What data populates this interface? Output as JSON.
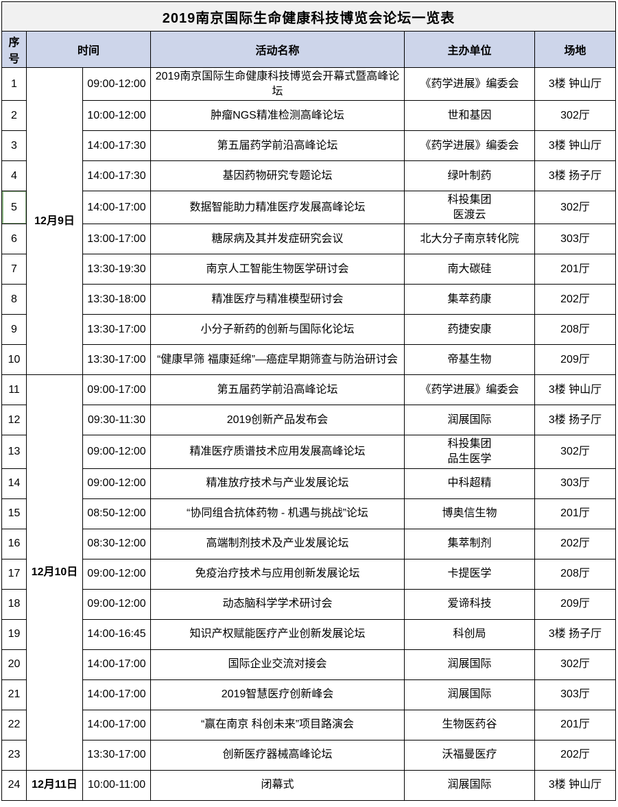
{
  "title": "2019南京国际生命健康科技博览会论坛一览表",
  "columns": {
    "no": "序号",
    "time": "时间",
    "activity": "活动名称",
    "organizer": "主办单位",
    "venue": "场地"
  },
  "colors": {
    "title_bg": "#f1f1f1",
    "header_bg": "#cdd5ea",
    "selection_green": "#94bd8c",
    "grid_border": "#000000"
  },
  "rows": [
    {
      "no": "1",
      "date": "12月9日",
      "date_span": 10,
      "time": "09:00-12:00",
      "activity": "2019南京国际生命健康科技博览会开幕式暨高峰论坛",
      "organizer": "《药学进展》编委会",
      "venue": "3楼 钟山厅"
    },
    {
      "no": "2",
      "time": "10:00-12:00",
      "activity": "肿瘤NGS精准检测高峰论坛",
      "organizer": "世和基因",
      "venue": "302厅"
    },
    {
      "no": "3",
      "time": "14:00-17:30",
      "activity": "第五届药学前沿高峰论坛",
      "organizer": "《药学进展》编委会",
      "venue": "3楼 钟山厅"
    },
    {
      "no": "4",
      "time": "14:00-17:30",
      "activity": "基因药物研究专题论坛",
      "organizer": "绿叶制药",
      "venue": "3楼 扬子厅"
    },
    {
      "no": "5",
      "selected": true,
      "time": "14:00-17:00",
      "activity": "数据智能助力精准医疗发展高峰论坛",
      "organizer": "科投集团\n医渡云",
      "venue": "302厅"
    },
    {
      "no": "6",
      "time": "13:00-17:00",
      "activity": "糖尿病及其并发症研究会议",
      "organizer": "北大分子南京转化院",
      "venue": "303厅"
    },
    {
      "no": "7",
      "time": "13:30-19:30",
      "activity": "南京人工智能生物医学研讨会",
      "organizer": "南大碳硅",
      "venue": "201厅"
    },
    {
      "no": "8",
      "time": "13:30-18:00",
      "activity": "精准医疗与精准模型研讨会",
      "organizer": "集萃药康",
      "venue": "202厅"
    },
    {
      "no": "9",
      "time": "13:30-17:00",
      "activity": "小分子新药的创新与国际化论坛",
      "organizer": "药捷安康",
      "venue": "208厅"
    },
    {
      "no": "10",
      "time": "13:30-17:00",
      "activity": "“健康早筛 福康延绵”—癌症早期筛查与防治研讨会",
      "organizer": "帝基生物",
      "venue": "209厅"
    },
    {
      "no": "11",
      "date": "12月10日",
      "date_span": 13,
      "time": "09:00-17:00",
      "activity": "第五届药学前沿高峰论坛",
      "organizer": "《药学进展》编委会",
      "venue": "3楼 钟山厅"
    },
    {
      "no": "12",
      "time": "09:30-11:30",
      "activity": "2019创新产品发布会",
      "organizer": "润展国际",
      "venue": "3楼 扬子厅"
    },
    {
      "no": "13",
      "time": "09:00-12:00",
      "activity": "精准医疗质谱技术应用发展高峰论坛",
      "organizer": "科投集团\n品生医学",
      "venue": "302厅"
    },
    {
      "no": "14",
      "time": "09:00-12:00",
      "activity": "精准放疗技术与产业发展论坛",
      "organizer": "中科超精",
      "venue": "303厅"
    },
    {
      "no": "15",
      "time": "08:50-12:00",
      "activity": "“协同组合抗体药物 - 机遇与挑战”论坛",
      "organizer": "博奥信生物",
      "venue": "201厅"
    },
    {
      "no": "16",
      "time": "08:30-12:00",
      "activity": "高端制剂技术及产业发展论坛",
      "organizer": "集萃制剂",
      "venue": "202厅"
    },
    {
      "no": "17",
      "time": "09:00-12:00",
      "activity": "免疫治疗技术与应用创新发展论坛",
      "organizer": "卡提医学",
      "venue": "208厅"
    },
    {
      "no": "18",
      "time": "09:00-12:00",
      "activity": "动态脑科学学术研讨会",
      "organizer": "爱谛科技",
      "venue": "209厅"
    },
    {
      "no": "19",
      "time": "14:00-16:45",
      "activity": "知识产权赋能医疗产业创新发展论坛",
      "organizer": "科创局",
      "venue": "3楼 扬子厅"
    },
    {
      "no": "20",
      "time": "14:00-17:00",
      "activity": "国际企业交流对接会",
      "organizer": "润展国际",
      "venue": "302厅"
    },
    {
      "no": "21",
      "time": "14:00-17:00",
      "activity": "2019智慧医疗创新峰会",
      "organizer": "润展国际",
      "venue": "303厅"
    },
    {
      "no": "22",
      "time": "14:00-17:00",
      "activity": "“赢在南京 科创未来”项目路演会",
      "organizer": "生物医药谷",
      "venue": "201厅"
    },
    {
      "no": "23",
      "time": "13:30-17:00",
      "activity": "创新医疗器械高峰论坛",
      "organizer": "沃福曼医疗",
      "venue": "202厅"
    },
    {
      "no": "24",
      "date": "12月11日",
      "date_span": 1,
      "time": "10:00-11:00",
      "activity": "闭幕式",
      "organizer": "润展国际",
      "venue": "3楼 钟山厅"
    }
  ]
}
